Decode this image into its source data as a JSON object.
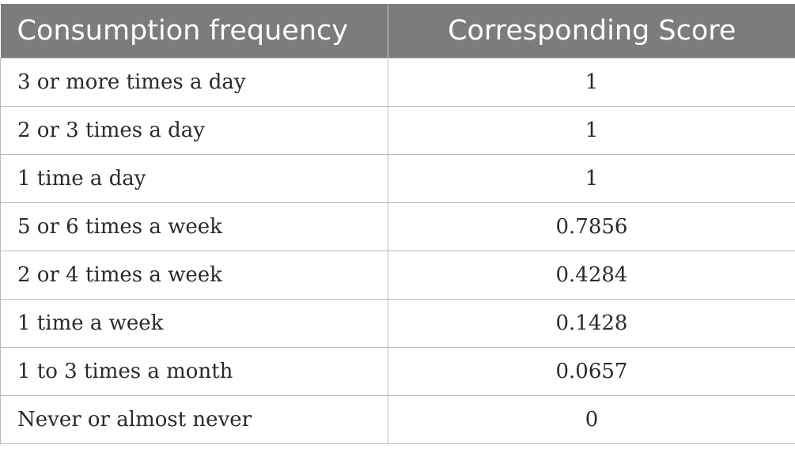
{
  "table": {
    "headers": [
      "Consumption frequency",
      "Corresponding Score"
    ],
    "rows": [
      [
        "3 or more times a day",
        "1"
      ],
      [
        "2 or 3 times a day",
        "1"
      ],
      [
        "1 time a day",
        "1"
      ],
      [
        "5 or 6 times a week",
        "0.7856"
      ],
      [
        "2 or 4 times a week",
        "0.4284"
      ],
      [
        "1 time a week",
        "0.1428"
      ],
      [
        "1 to 3 times a month",
        "0.0657"
      ],
      [
        "Never or almost never",
        "0"
      ]
    ]
  },
  "colors": {
    "header_bg": "#7b7d7c",
    "header_text": "#ffffff",
    "border": "#b9b9b9",
    "body_text": "#2a2a2a"
  }
}
